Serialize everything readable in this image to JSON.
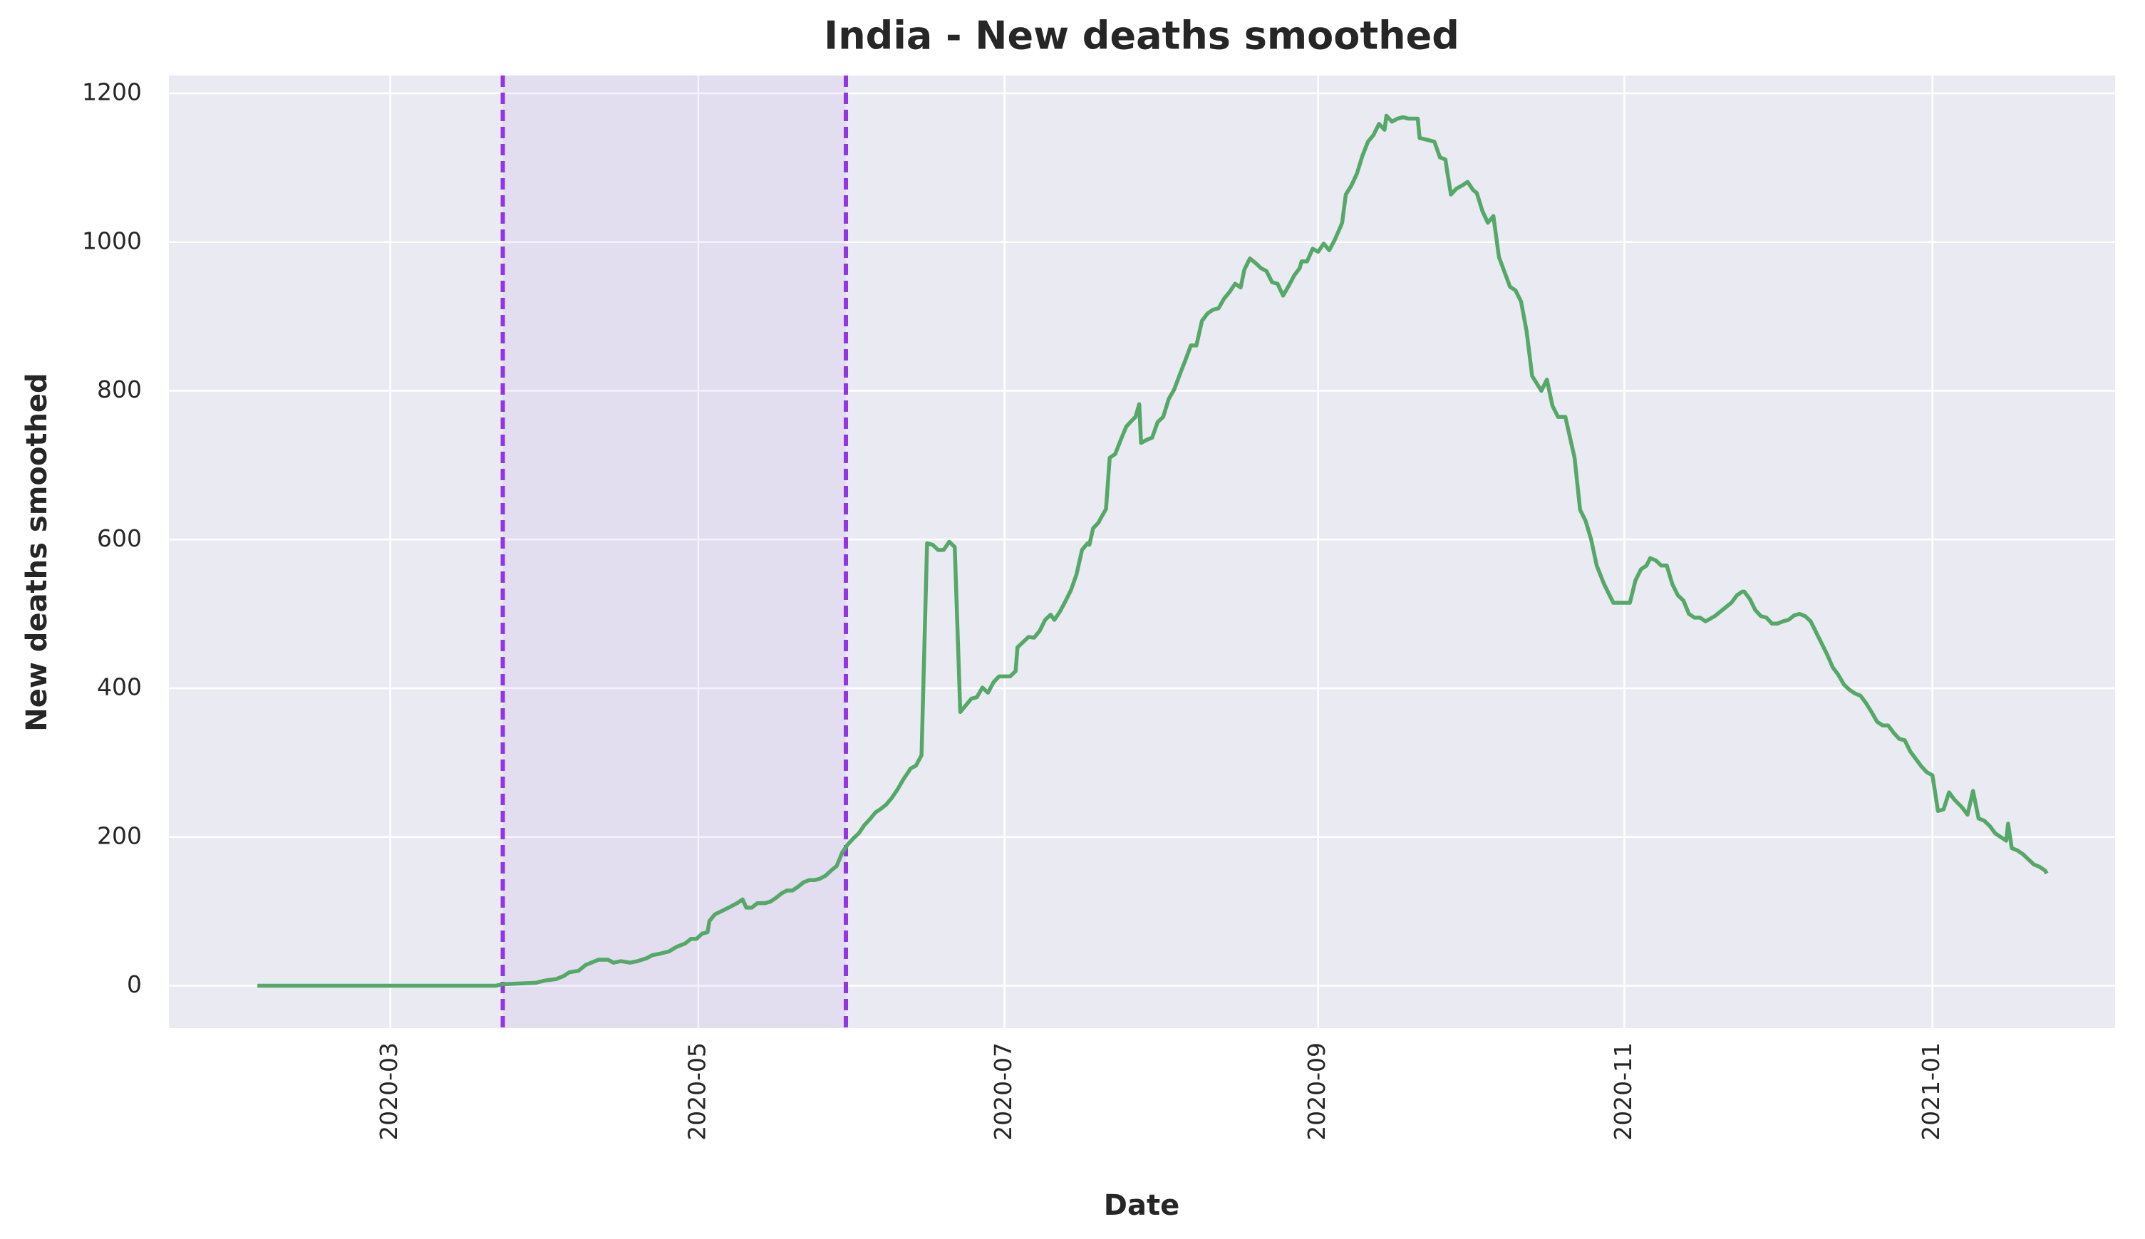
{
  "chart_data": {
    "type": "line",
    "title": "India - New deaths smoothed",
    "xlabel": "Date",
    "ylabel": "New deaths smoothed",
    "color": "#55a868",
    "x": [
      2020.092,
      2020.221,
      2020.225,
      2020.243,
      2020.248,
      2020.254,
      2020.258,
      2020.261,
      2020.266,
      2020.27,
      2020.275,
      2020.277,
      2020.282,
      2020.285,
      2020.289,
      2020.294,
      2020.298,
      2020.303,
      2020.306,
      2020.31,
      2020.315,
      2020.319,
      2020.324,
      2020.327,
      2020.33,
      2020.333,
      2020.336,
      2020.337,
      2020.34,
      2020.345,
      2020.349,
      2020.352,
      2020.355,
      2020.357,
      2020.36,
      2020.363,
      2020.367,
      2020.37,
      2020.373,
      2020.376,
      2020.379,
      2020.382,
      2020.385,
      2020.388,
      2020.391,
      2020.394,
      2020.397,
      2020.4,
      2020.403,
      2020.406,
      2020.409,
      2020.412,
      2020.415,
      2020.418,
      2020.421,
      2020.424,
      2020.427,
      2020.43,
      2020.433,
      2020.436,
      2020.439,
      2020.442,
      2020.445,
      2020.446,
      2020.449,
      2020.452,
      2020.455,
      2020.458,
      2020.461,
      2020.464,
      2020.467,
      2020.47,
      2020.473,
      2020.476,
      2020.479,
      2020.482,
      2020.485,
      2020.488,
      2020.491,
      2020.494,
      2020.497,
      2020.5,
      2020.503,
      2020.504,
      2020.507,
      2020.51,
      2020.513,
      2020.516,
      2020.519,
      2020.522,
      2020.524,
      2020.527,
      2020.53,
      2020.533,
      2020.536,
      2020.539,
      2020.542,
      2020.543,
      2020.545,
      2020.548,
      2020.549,
      2020.552,
      2020.554,
      2020.557,
      2020.56,
      2020.563,
      2020.566,
      2020.568,
      2020.57,
      2020.571,
      2020.574,
      2020.577,
      2020.58,
      2020.583,
      2020.586,
      2020.589,
      2020.592,
      2020.595,
      2020.598,
      2020.601,
      2020.604,
      2020.607,
      2020.61,
      2020.613,
      2020.616,
      2020.619,
      2020.622,
      2020.625,
      2020.627,
      2020.63,
      2020.633,
      2020.636,
      2020.639,
      2020.642,
      2020.645,
      2020.648,
      2020.651,
      2020.654,
      2020.657,
      2020.658,
      2020.661,
      2020.664,
      2020.667,
      2020.67,
      2020.673,
      2020.676,
      2020.679,
      2020.68,
      2020.682,
      2020.685,
      2020.688,
      2020.691,
      2020.694,
      2020.697,
      2020.7,
      2020.703,
      2020.704,
      2020.707,
      2020.71,
      2020.713,
      2020.716,
      2020.721,
      2020.722,
      2020.727,
      2020.73,
      2020.733,
      2020.736,
      2020.737,
      2020.739,
      2020.742,
      2020.745,
      2020.748,
      2020.751,
      2020.753,
      2020.756,
      2020.759,
      2020.762,
      2020.765,
      2020.771,
      2020.774,
      2020.777,
      2020.78,
      2020.783,
      2020.788,
      2020.791,
      2020.794,
      2020.797,
      2020.801,
      2020.806,
      2020.809,
      2020.812,
      2020.815,
      2020.818,
      2020.822,
      2020.827,
      2020.831,
      2020.836,
      2020.839,
      2020.842,
      2020.845,
      2020.847,
      2020.85,
      2020.853,
      2020.856,
      2020.859,
      2020.862,
      2020.865,
      2020.868,
      2020.871,
      2020.874,
      2020.877,
      2020.882,
      2020.886,
      2020.891,
      2020.894,
      2020.897,
      2020.898,
      2020.901,
      2020.904,
      2020.907,
      2020.91,
      2020.913,
      2020.916,
      2020.919,
      2020.922,
      2020.925,
      2020.928,
      2020.931,
      2020.934,
      2020.937,
      2020.94,
      2020.943,
      2020.946,
      2020.949,
      2020.952,
      2020.955,
      2020.958,
      2020.961,
      2020.964,
      2020.967,
      2020.97,
      2020.973,
      2020.976,
      2020.979,
      2020.982,
      2020.985,
      2020.988,
      2020.991,
      2020.994,
      2020.997,
      2021.0,
      2021.003,
      2021.006,
      2021.009,
      2021.012,
      2021.016,
      2021.019,
      2021.022,
      2021.025,
      2021.028,
      2021.031,
      2021.034,
      2021.037,
      2021.04,
      2021.041,
      2021.043,
      2021.046,
      2021.049,
      2021.052,
      2021.055,
      2021.058,
      2021.061,
      2021.062
    ],
    "values": [
      0,
      0,
      2,
      4,
      7,
      9,
      13,
      18,
      20,
      28,
      33,
      35,
      35,
      31,
      33,
      31,
      33,
      37,
      41,
      43,
      46,
      52,
      57,
      63,
      63,
      70,
      72,
      87,
      96,
      102,
      107,
      111,
      116,
      105,
      105,
      111,
      111,
      113,
      118,
      124,
      128,
      128,
      133,
      139,
      142,
      142,
      144,
      148,
      155,
      161,
      179,
      190,
      198,
      205,
      216,
      224,
      233,
      238,
      244,
      253,
      264,
      277,
      288,
      292,
      296,
      310,
      595,
      593,
      586,
      586,
      597,
      590,
      368,
      377,
      386,
      388,
      401,
      394,
      408,
      416,
      416,
      416,
      423,
      455,
      462,
      469,
      468,
      477,
      492,
      499,
      492,
      503,
      517,
      532,
      553,
      586,
      595,
      593,
      615,
      623,
      628,
      641,
      710,
      715,
      734,
      752,
      760,
      765,
      782,
      730,
      734,
      737,
      758,
      765,
      789,
      802,
      822,
      841,
      861,
      861,
      894,
      904,
      909,
      911,
      924,
      933,
      944,
      939,
      963,
      978,
      972,
      965,
      961,
      946,
      944,
      928,
      941,
      955,
      965,
      974,
      974,
      991,
      987,
      998,
      989,
      1003,
      1020,
      1026,
      1064,
      1076,
      1092,
      1116,
      1135,
      1144,
      1159,
      1151,
      1170,
      1162,
      1166,
      1168,
      1166,
      1166,
      1140,
      1137,
      1135,
      1114,
      1111,
      1094,
      1064,
      1072,
      1076,
      1081,
      1070,
      1066,
      1042,
      1026,
      1035,
      980,
      940,
      935,
      920,
      880,
      820,
      800,
      815,
      780,
      765,
      765,
      710,
      640,
      625,
      600,
      565,
      540,
      515,
      515,
      515,
      545,
      560,
      565,
      575,
      572,
      565,
      565,
      540,
      525,
      518,
      500,
      495,
      495,
      490,
      497,
      505,
      515,
      525,
      530,
      530,
      520,
      505,
      497,
      495,
      487,
      487,
      490,
      492,
      498,
      500,
      497,
      490,
      475,
      460,
      445,
      428,
      418,
      405,
      398,
      393,
      390,
      380,
      368,
      355,
      350,
      350,
      340,
      332,
      330,
      315,
      305,
      295,
      287,
      283,
      235,
      237,
      260,
      250,
      240,
      230,
      262,
      225,
      222,
      215,
      205,
      200,
      195,
      218,
      185,
      182,
      177,
      170,
      163,
      160,
      155,
      151
    ],
    "xlim": [
      2020.044,
      2021.099
    ],
    "xticks": [
      {
        "value": 2020.164,
        "label": "2020-03"
      },
      {
        "value": 2020.331,
        "label": "2020-05"
      },
      {
        "value": 2020.497,
        "label": "2020-07"
      },
      {
        "value": 2020.667,
        "label": "2020-09"
      },
      {
        "value": 2020.833,
        "label": "2020-11"
      },
      {
        "value": 2021.0,
        "label": "2021-01"
      }
    ],
    "ylim": [
      -57,
      1224
    ],
    "yticks": [
      0,
      200,
      400,
      600,
      800,
      1000,
      1200
    ],
    "grid": true,
    "span": {
      "x": [
        2020.225,
        2020.411
      ],
      "color": "#9334e6"
    }
  }
}
